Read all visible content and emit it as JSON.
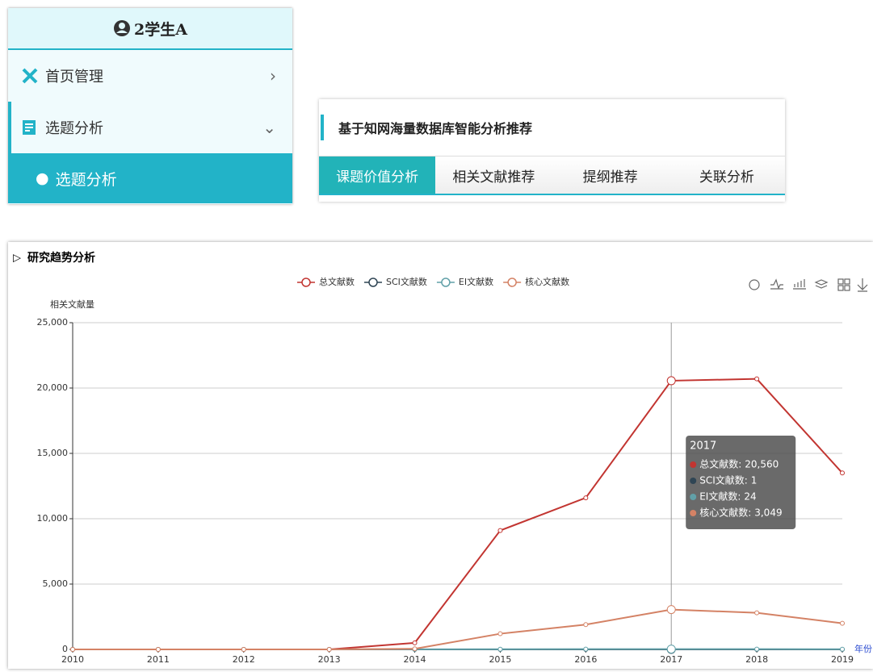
{
  "sidebar": {
    "user": "2学生A",
    "menu": [
      {
        "label": "首页管理"
      },
      {
        "label": "选题分析",
        "children": [
          "选题分析"
        ]
      }
    ]
  },
  "panel": {
    "title": "基于知网海量数据库智能分析推荐",
    "tabs": [
      "课题价值分析",
      "相关文献推荐",
      "提纲推荐",
      "关联分析"
    ]
  },
  "chart_data": {
    "type": "line",
    "title": "研究趋势分析",
    "y_label": "相关文献量",
    "x_label": "年份",
    "categories": [
      "2010",
      "2011",
      "2012",
      "2013",
      "2014",
      "2015",
      "2016",
      "2017",
      "2018",
      "2019"
    ],
    "series": [
      {
        "name": "总文献数",
        "color": "#c23531",
        "values": [
          0,
          0,
          0,
          0,
          500,
          9100,
          11600,
          20560,
          20700,
          13500
        ],
        "value_labels": [
          null,
          null,
          null,
          null,
          null,
          null,
          null,
          "20,560",
          null,
          null
        ]
      },
      {
        "name": "SCI文献数",
        "color": "#2f4554",
        "values": [
          0,
          0,
          0,
          0,
          0,
          0,
          1,
          1,
          1,
          0
        ],
        "value_labels": [
          null,
          null,
          null,
          null,
          null,
          null,
          null,
          "1",
          null,
          null
        ]
      },
      {
        "name": "EI文献数",
        "color": "#61a0a8",
        "values": [
          0,
          0,
          0,
          0,
          5,
          15,
          20,
          24,
          22,
          15
        ],
        "value_labels": [
          null,
          null,
          null,
          null,
          null,
          null,
          null,
          "24",
          null,
          null
        ]
      },
      {
        "name": "核心文献数",
        "color": "#d48265",
        "values": [
          0,
          0,
          0,
          0,
          50,
          1200,
          1900,
          3049,
          2800,
          2000
        ],
        "value_labels": [
          null,
          null,
          null,
          null,
          null,
          null,
          null,
          "3,049",
          null,
          null
        ]
      }
    ],
    "ylim": [
      0,
      25000
    ],
    "yticks": [
      0,
      {
        "value": 5000,
        "label": "5,000"
      },
      {
        "value": 10000,
        "label": "10,000"
      },
      {
        "value": 15000,
        "label": "15,000"
      },
      {
        "value": 20000,
        "label": "20,000"
      },
      {
        "value": 25000,
        "label": "25,000"
      }
    ],
    "grid": true
  }
}
